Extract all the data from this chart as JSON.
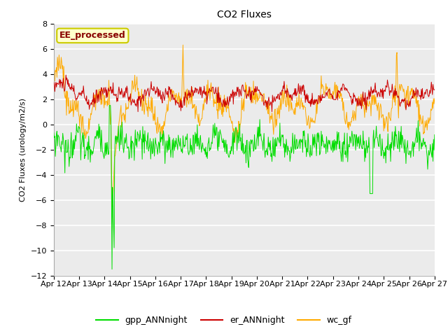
{
  "title": "CO2 Fluxes",
  "ylabel": "CO2 Fluxes (urology/m2/s)",
  "ylim": [
    -12,
    8
  ],
  "yticks": [
    -12,
    -10,
    -8,
    -6,
    -4,
    -2,
    0,
    2,
    4,
    6,
    8
  ],
  "xticklabels": [
    "Apr 12",
    "Apr 13",
    "Apr 14",
    "Apr 15",
    "Apr 16",
    "Apr 17",
    "Apr 18",
    "Apr 19",
    "Apr 20",
    "Apr 21",
    "Apr 22",
    "Apr 23",
    "Apr 24",
    "Apr 25",
    "Apr 26",
    "Apr 27"
  ],
  "fig_bg": "#ffffff",
  "plot_bg": "#ebebeb",
  "grid_color": "#ffffff",
  "color_gpp": "#00dd00",
  "color_er": "#cc0000",
  "color_wc": "#ffaa00",
  "legend_text": "EE_processed",
  "legend_box_color": "#ffffcc",
  "legend_box_edge": "#cccc00",
  "series_names": [
    "gpp_ANNnight",
    "er_ANNnight",
    "wc_gf"
  ],
  "n_points": 720,
  "title_fontsize": 10,
  "label_fontsize": 8,
  "tick_fontsize": 8
}
